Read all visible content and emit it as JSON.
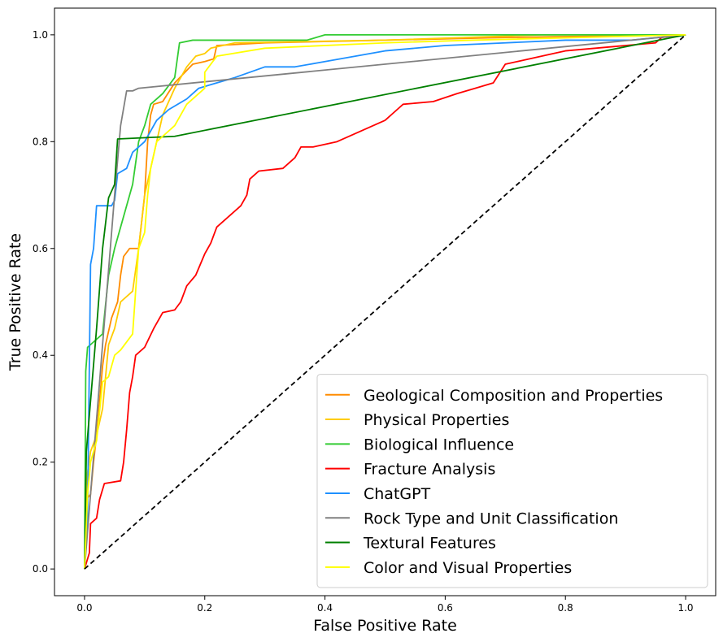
{
  "chart_data": {
    "type": "line",
    "title": "",
    "xlabel": "False Positive Rate",
    "ylabel": "True Positive Rate",
    "xlim": [
      -0.05,
      1.05
    ],
    "ylim": [
      -0.05,
      1.05
    ],
    "xticks": [
      "0.0",
      "0.2",
      "0.4",
      "0.6",
      "0.8",
      "1.0"
    ],
    "yticks": [
      "0.0",
      "0.2",
      "0.4",
      "0.6",
      "0.8",
      "1.0"
    ],
    "grid": false,
    "legend_position": "lower-right",
    "diagonal": {
      "style": "dashed",
      "color": "#000000",
      "points": [
        [
          0,
          0
        ],
        [
          1,
          1
        ]
      ]
    },
    "series": [
      {
        "name": "Geological Composition and Properties",
        "color": "#ff8c00",
        "points": [
          [
            0,
            0
          ],
          [
            0.003,
            0.13
          ],
          [
            0.01,
            0.14
          ],
          [
            0.015,
            0.2
          ],
          [
            0.02,
            0.25
          ],
          [
            0.03,
            0.38
          ],
          [
            0.035,
            0.42
          ],
          [
            0.045,
            0.47
          ],
          [
            0.055,
            0.5
          ],
          [
            0.06,
            0.55
          ],
          [
            0.065,
            0.585
          ],
          [
            0.075,
            0.6
          ],
          [
            0.09,
            0.6
          ],
          [
            0.1,
            0.7
          ],
          [
            0.105,
            0.8
          ],
          [
            0.11,
            0.85
          ],
          [
            0.115,
            0.87
          ],
          [
            0.13,
            0.875
          ],
          [
            0.15,
            0.91
          ],
          [
            0.18,
            0.945
          ],
          [
            0.2,
            0.95
          ],
          [
            0.215,
            0.955
          ],
          [
            0.22,
            0.98
          ],
          [
            0.3,
            0.985
          ],
          [
            0.5,
            0.99
          ],
          [
            0.7,
            0.995
          ],
          [
            1,
            1
          ]
        ]
      },
      {
        "name": "Physical Properties",
        "color": "#ffcc00",
        "points": [
          [
            0,
            0
          ],
          [
            0.005,
            0.18
          ],
          [
            0.01,
            0.22
          ],
          [
            0.02,
            0.25
          ],
          [
            0.03,
            0.3
          ],
          [
            0.04,
            0.42
          ],
          [
            0.05,
            0.45
          ],
          [
            0.06,
            0.5
          ],
          [
            0.08,
            0.52
          ],
          [
            0.09,
            0.6
          ],
          [
            0.1,
            0.7
          ],
          [
            0.11,
            0.75
          ],
          [
            0.12,
            0.8
          ],
          [
            0.13,
            0.85
          ],
          [
            0.15,
            0.9
          ],
          [
            0.17,
            0.94
          ],
          [
            0.185,
            0.96
          ],
          [
            0.2,
            0.965
          ],
          [
            0.21,
            0.975
          ],
          [
            0.25,
            0.985
          ],
          [
            0.5,
            0.99
          ],
          [
            0.76,
            1
          ],
          [
            1,
            1
          ]
        ]
      },
      {
        "name": "Biological Influence",
        "color": "#33cc33",
        "points": [
          [
            0,
            0
          ],
          [
            0.002,
            0.37
          ],
          [
            0.005,
            0.415
          ],
          [
            0.02,
            0.43
          ],
          [
            0.03,
            0.44
          ],
          [
            0.04,
            0.55
          ],
          [
            0.05,
            0.6
          ],
          [
            0.08,
            0.72
          ],
          [
            0.09,
            0.8
          ],
          [
            0.1,
            0.83
          ],
          [
            0.11,
            0.87
          ],
          [
            0.13,
            0.89
          ],
          [
            0.15,
            0.92
          ],
          [
            0.158,
            0.985
          ],
          [
            0.18,
            0.99
          ],
          [
            0.37,
            0.99
          ],
          [
            0.4,
            1
          ],
          [
            1,
            1
          ]
        ]
      },
      {
        "name": "Fracture Analysis",
        "color": "#ff0000",
        "points": [
          [
            0,
            0
          ],
          [
            0.008,
            0.03
          ],
          [
            0.01,
            0.085
          ],
          [
            0.02,
            0.095
          ],
          [
            0.025,
            0.13
          ],
          [
            0.033,
            0.16
          ],
          [
            0.06,
            0.165
          ],
          [
            0.065,
            0.2
          ],
          [
            0.07,
            0.26
          ],
          [
            0.075,
            0.33
          ],
          [
            0.08,
            0.36
          ],
          [
            0.085,
            0.4
          ],
          [
            0.1,
            0.415
          ],
          [
            0.115,
            0.45
          ],
          [
            0.13,
            0.48
          ],
          [
            0.15,
            0.485
          ],
          [
            0.16,
            0.5
          ],
          [
            0.17,
            0.53
          ],
          [
            0.185,
            0.55
          ],
          [
            0.2,
            0.59
          ],
          [
            0.21,
            0.61
          ],
          [
            0.22,
            0.64
          ],
          [
            0.24,
            0.66
          ],
          [
            0.26,
            0.68
          ],
          [
            0.27,
            0.7
          ],
          [
            0.275,
            0.73
          ],
          [
            0.29,
            0.745
          ],
          [
            0.33,
            0.75
          ],
          [
            0.35,
            0.77
          ],
          [
            0.36,
            0.79
          ],
          [
            0.38,
            0.79
          ],
          [
            0.42,
            0.8
          ],
          [
            0.46,
            0.82
          ],
          [
            0.5,
            0.84
          ],
          [
            0.52,
            0.86
          ],
          [
            0.53,
            0.87
          ],
          [
            0.58,
            0.875
          ],
          [
            0.62,
            0.89
          ],
          [
            0.65,
            0.9
          ],
          [
            0.68,
            0.91
          ],
          [
            0.7,
            0.945
          ],
          [
            0.72,
            0.95
          ],
          [
            0.78,
            0.965
          ],
          [
            0.8,
            0.97
          ],
          [
            0.85,
            0.975
          ],
          [
            0.95,
            0.985
          ],
          [
            0.96,
            0.995
          ],
          [
            1,
            1
          ]
        ]
      },
      {
        "name": "ChatGPT",
        "color": "#1e90ff",
        "points": [
          [
            0,
            0
          ],
          [
            0.005,
            0.1
          ],
          [
            0.01,
            0.57
          ],
          [
            0.015,
            0.6
          ],
          [
            0.02,
            0.68
          ],
          [
            0.045,
            0.68
          ],
          [
            0.05,
            0.69
          ],
          [
            0.055,
            0.74
          ],
          [
            0.07,
            0.75
          ],
          [
            0.08,
            0.78
          ],
          [
            0.1,
            0.8
          ],
          [
            0.12,
            0.84
          ],
          [
            0.14,
            0.86
          ],
          [
            0.17,
            0.88
          ],
          [
            0.19,
            0.9
          ],
          [
            0.22,
            0.91
          ],
          [
            0.25,
            0.92
          ],
          [
            0.3,
            0.94
          ],
          [
            0.35,
            0.94
          ],
          [
            0.4,
            0.95
          ],
          [
            0.5,
            0.97
          ],
          [
            0.6,
            0.98
          ],
          [
            0.7,
            0.985
          ],
          [
            0.8,
            0.99
          ],
          [
            0.91,
            0.99
          ],
          [
            1,
            1
          ]
        ]
      },
      {
        "name": "Rock Type and Unit Classification",
        "color": "#808080",
        "points": [
          [
            0,
            0
          ],
          [
            0.05,
            0.7
          ],
          [
            0.06,
            0.83
          ],
          [
            0.07,
            0.895
          ],
          [
            0.08,
            0.895
          ],
          [
            0.09,
            0.9
          ],
          [
            1,
            1
          ]
        ]
      },
      {
        "name": "Textural Features",
        "color": "#008000",
        "points": [
          [
            0,
            0
          ],
          [
            0.003,
            0.22
          ],
          [
            0.02,
            0.45
          ],
          [
            0.03,
            0.6
          ],
          [
            0.04,
            0.695
          ],
          [
            0.05,
            0.72
          ],
          [
            0.055,
            0.805
          ],
          [
            0.15,
            0.81
          ],
          [
            1,
            1
          ]
        ]
      },
      {
        "name": "Color and Visual Properties",
        "color": "#ffff00",
        "points": [
          [
            0,
            0
          ],
          [
            0.005,
            0.14
          ],
          [
            0.01,
            0.2
          ],
          [
            0.02,
            0.24
          ],
          [
            0.03,
            0.35
          ],
          [
            0.04,
            0.36
          ],
          [
            0.05,
            0.4
          ],
          [
            0.06,
            0.41
          ],
          [
            0.08,
            0.44
          ],
          [
            0.09,
            0.6
          ],
          [
            0.1,
            0.63
          ],
          [
            0.105,
            0.7
          ],
          [
            0.11,
            0.75
          ],
          [
            0.12,
            0.8
          ],
          [
            0.13,
            0.81
          ],
          [
            0.15,
            0.83
          ],
          [
            0.17,
            0.87
          ],
          [
            0.2,
            0.9
          ],
          [
            0.2,
            0.93
          ],
          [
            0.22,
            0.96
          ],
          [
            0.3,
            0.975
          ],
          [
            0.5,
            0.985
          ],
          [
            0.645,
            0.99
          ],
          [
            1,
            1
          ]
        ]
      }
    ]
  }
}
